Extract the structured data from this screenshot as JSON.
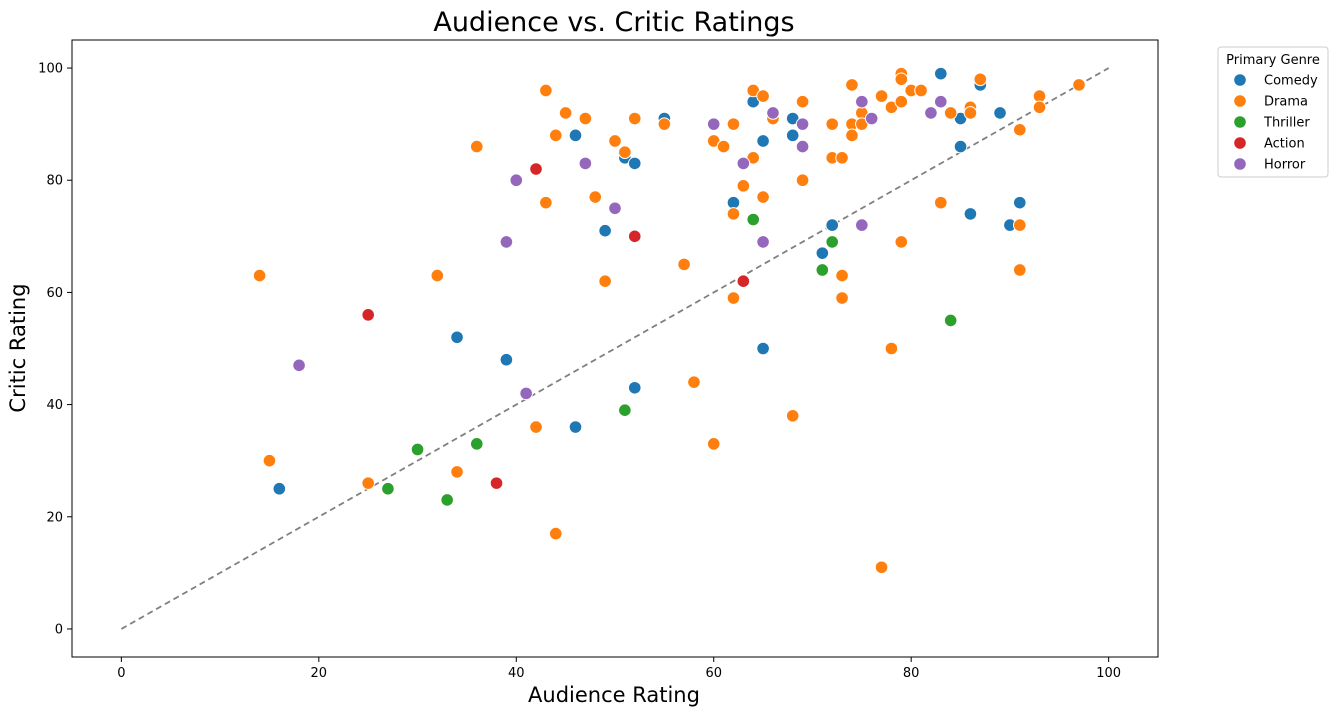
{
  "chart_data": {
    "type": "scatter",
    "title": "Audience vs. Critic Ratings",
    "xlabel": "Audience Rating",
    "ylabel": "Critic Rating",
    "xlim": [
      -5,
      105
    ],
    "ylim": [
      -5,
      105
    ],
    "xticks": [
      0,
      20,
      40,
      60,
      80,
      100
    ],
    "yticks": [
      0,
      20,
      40,
      60,
      80,
      100
    ],
    "reference_line": {
      "from": [
        0,
        0
      ],
      "to": [
        100,
        100
      ],
      "style": "dashed",
      "color": "#808080"
    },
    "legend": {
      "title": "Primary Genre",
      "placement": "outside-top-right"
    },
    "series": [
      {
        "name": "Comedy",
        "color": "#1f77b4",
        "points": [
          [
            16,
            25
          ],
          [
            34,
            52
          ],
          [
            39,
            48
          ],
          [
            46,
            36
          ],
          [
            46,
            88
          ],
          [
            49,
            71
          ],
          [
            51,
            84
          ],
          [
            52,
            83
          ],
          [
            52,
            43
          ],
          [
            55,
            91
          ],
          [
            62,
            76
          ],
          [
            64,
            94
          ],
          [
            65,
            87
          ],
          [
            65,
            50
          ],
          [
            68,
            91
          ],
          [
            68,
            88
          ],
          [
            71,
            67
          ],
          [
            72,
            72
          ],
          [
            83,
            99
          ],
          [
            85,
            91
          ],
          [
            85,
            86
          ],
          [
            86,
            74
          ],
          [
            87,
            97
          ],
          [
            89,
            92
          ],
          [
            90,
            72
          ],
          [
            91,
            76
          ]
        ]
      },
      {
        "name": "Drama",
        "color": "#ff7f0e",
        "points": [
          [
            14,
            63
          ],
          [
            15,
            30
          ],
          [
            25,
            26
          ],
          [
            32,
            63
          ],
          [
            34,
            28
          ],
          [
            36,
            86
          ],
          [
            42,
            36
          ],
          [
            43,
            96
          ],
          [
            43,
            76
          ],
          [
            44,
            88
          ],
          [
            44,
            17
          ],
          [
            45,
            92
          ],
          [
            47,
            91
          ],
          [
            48,
            77
          ],
          [
            49,
            62
          ],
          [
            50,
            87
          ],
          [
            51,
            85
          ],
          [
            52,
            91
          ],
          [
            55,
            90
          ],
          [
            57,
            65
          ],
          [
            58,
            44
          ],
          [
            60,
            87
          ],
          [
            60,
            33
          ],
          [
            61,
            86
          ],
          [
            62,
            90
          ],
          [
            62,
            74
          ],
          [
            62,
            59
          ],
          [
            63,
            79
          ],
          [
            64,
            96
          ],
          [
            64,
            84
          ],
          [
            65,
            95
          ],
          [
            65,
            77
          ],
          [
            66,
            91
          ],
          [
            68,
            38
          ],
          [
            69,
            94
          ],
          [
            69,
            80
          ],
          [
            72,
            90
          ],
          [
            72,
            84
          ],
          [
            73,
            84
          ],
          [
            73,
            63
          ],
          [
            73,
            59
          ],
          [
            74,
            97
          ],
          [
            74,
            90
          ],
          [
            74,
            88
          ],
          [
            75,
            92
          ],
          [
            75,
            90
          ],
          [
            77,
            95
          ],
          [
            77,
            11
          ],
          [
            78,
            93
          ],
          [
            78,
            50
          ],
          [
            79,
            99
          ],
          [
            79,
            98
          ],
          [
            79,
            94
          ],
          [
            79,
            69
          ],
          [
            80,
            96
          ],
          [
            81,
            96
          ],
          [
            83,
            76
          ],
          [
            84,
            92
          ],
          [
            86,
            93
          ],
          [
            86,
            92
          ],
          [
            87,
            98
          ],
          [
            91,
            89
          ],
          [
            91,
            72
          ],
          [
            91,
            64
          ],
          [
            93,
            95
          ],
          [
            93,
            93
          ],
          [
            97,
            97
          ]
        ]
      },
      {
        "name": "Thriller",
        "color": "#2ca02c",
        "points": [
          [
            27,
            25
          ],
          [
            30,
            32
          ],
          [
            33,
            23
          ],
          [
            36,
            33
          ],
          [
            51,
            39
          ],
          [
            64,
            73
          ],
          [
            71,
            64
          ],
          [
            72,
            69
          ],
          [
            84,
            55
          ]
        ]
      },
      {
        "name": "Action",
        "color": "#d62728",
        "points": [
          [
            25,
            56
          ],
          [
            38,
            26
          ],
          [
            42,
            82
          ],
          [
            52,
            70
          ],
          [
            63,
            62
          ]
        ]
      },
      {
        "name": "Horror",
        "color": "#9467bd",
        "points": [
          [
            18,
            47
          ],
          [
            39,
            69
          ],
          [
            40,
            80
          ],
          [
            41,
            42
          ],
          [
            47,
            83
          ],
          [
            50,
            75
          ],
          [
            60,
            90
          ],
          [
            63,
            83
          ],
          [
            65,
            69
          ],
          [
            66,
            92
          ],
          [
            69,
            90
          ],
          [
            69,
            86
          ],
          [
            75,
            94
          ],
          [
            75,
            72
          ],
          [
            76,
            91
          ],
          [
            82,
            92
          ],
          [
            83,
            94
          ]
        ]
      }
    ]
  }
}
